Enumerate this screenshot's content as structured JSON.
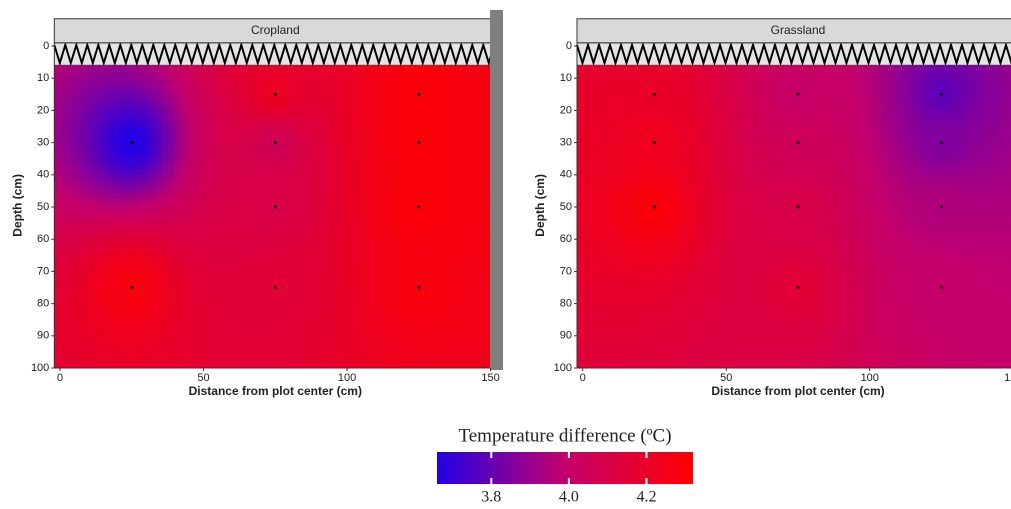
{
  "chart_data": {
    "type": "heatmap",
    "panels": [
      {
        "title": "Cropland",
        "points": {
          "x": [
            25,
            25,
            75,
            75,
            75,
            75,
            125,
            125,
            125,
            125
          ],
          "y": [
            30,
            75,
            15,
            30,
            50,
            75,
            15,
            30,
            50,
            75
          ],
          "values": [
            3.66,
            4.28,
            4.22,
            4.05,
            4.1,
            4.15,
            4.3,
            4.3,
            4.3,
            4.28
          ]
        }
      },
      {
        "title": "Grassland",
        "points": {
          "x": [
            25,
            75,
            125,
            25,
            75,
            125,
            25,
            75,
            125,
            75,
            125
          ],
          "y": [
            15,
            15,
            15,
            30,
            30,
            30,
            50,
            50,
            50,
            75,
            75
          ],
          "values": [
            4.2,
            4.0,
            3.78,
            4.24,
            4.05,
            3.85,
            4.3,
            4.1,
            3.95,
            4.16,
            4.0
          ]
        }
      }
    ],
    "x_label": "Distance from plot center (cm)",
    "y_label": "Depth (cm)",
    "xlim": [
      -2,
      152
    ],
    "xticks": [
      0,
      50,
      100,
      150
    ],
    "ylim": [
      -1,
      100
    ],
    "yticks": [
      0,
      10,
      20,
      30,
      40,
      50,
      60,
      70,
      80,
      90,
      100
    ],
    "colorbar": {
      "title": "Temperature difference (ºC)",
      "lim": [
        3.66,
        4.32
      ],
      "ticks": [
        3.8,
        {
          "value": 4,
          "label": "4.0"
        },
        4.2
      ],
      "colors": [
        "#2200e6",
        "#c4006c",
        "#ff0000"
      ]
    }
  }
}
